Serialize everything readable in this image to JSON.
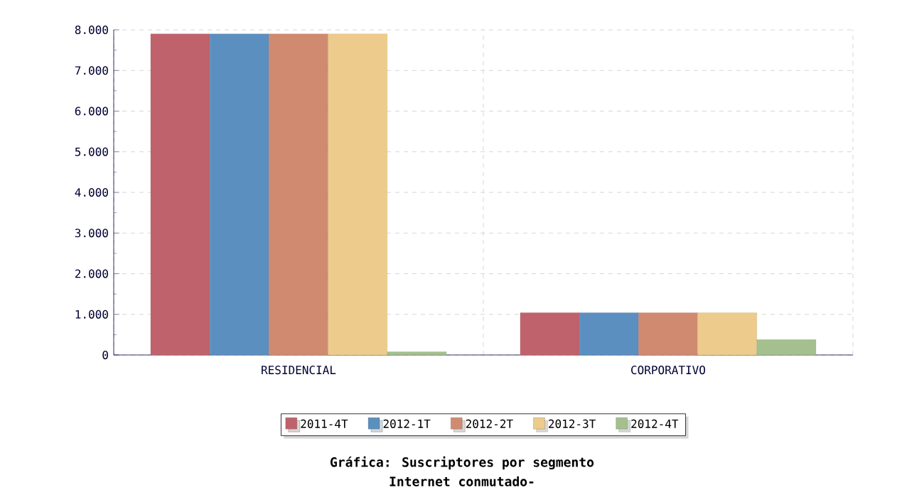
{
  "chart_data": {
    "type": "bar",
    "title": "Gráfica: Suscriptores por segmento",
    "subtitle": "Internet conmutado-",
    "categories": [
      "RESIDENCIAL",
      "CORPORATIVO"
    ],
    "series": [
      {
        "name": "2011-4T",
        "color": "#c0626b",
        "values": [
          7900,
          1040
        ]
      },
      {
        "name": "2012-1T",
        "color": "#5b8fbf",
        "values": [
          7900,
          1040
        ]
      },
      {
        "name": "2012-2T",
        "color": "#d08a70",
        "values": [
          7900,
          1040
        ]
      },
      {
        "name": "2012-3T",
        "color": "#eccb8c",
        "values": [
          7900,
          1040
        ]
      },
      {
        "name": "2012-4T",
        "color": "#a3c08e",
        "values": [
          80,
          380
        ]
      }
    ],
    "ylim": [
      0,
      8000
    ],
    "yticks": [
      {
        "value": 0,
        "label": "0"
      },
      {
        "value": 1000,
        "label": "1.000"
      },
      {
        "value": 2000,
        "label": "2.000"
      },
      {
        "value": 3000,
        "label": "3.000"
      },
      {
        "value": 4000,
        "label": "4.000"
      },
      {
        "value": 5000,
        "label": "5.000"
      },
      {
        "value": 6000,
        "label": "6.000"
      },
      {
        "value": 7000,
        "label": "7.000"
      },
      {
        "value": 8000,
        "label": "8.000"
      }
    ],
    "grid": true,
    "legend": "bottom"
  }
}
